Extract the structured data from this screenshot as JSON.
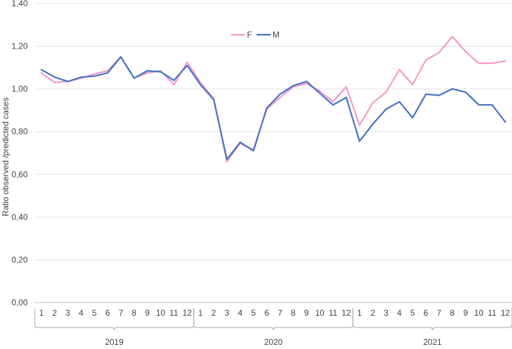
{
  "chart_data": {
    "type": "line",
    "title": "",
    "xlabel": "",
    "ylabel": "Ratio observed /predicted cases",
    "ylim": [
      0,
      1.4
    ],
    "yticks": [
      "0,00",
      "0,20",
      "0,40",
      "0,60",
      "0,80",
      "1,00",
      "1,20",
      "1,40"
    ],
    "grid": true,
    "legend_position": "top-center",
    "month_labels": [
      "1",
      "2",
      "3",
      "4",
      "5",
      "6",
      "7",
      "8",
      "9",
      "10",
      "11",
      "12"
    ],
    "years": [
      "2019",
      "2020",
      "2021"
    ],
    "series": [
      {
        "name": "F",
        "color": "#f49ac8",
        "values": [
          1.075,
          1.03,
          1.035,
          1.05,
          1.07,
          1.085,
          1.15,
          1.05,
          1.075,
          1.085,
          1.02,
          1.125,
          1.03,
          0.955,
          0.66,
          0.745,
          0.715,
          0.905,
          0.96,
          1.01,
          1.025,
          0.99,
          0.94,
          1.01,
          0.83,
          0.935,
          0.985,
          1.09,
          1.02,
          1.135,
          1.17,
          1.245,
          1.175,
          1.12,
          1.12,
          1.13
        ]
      },
      {
        "name": "M",
        "color": "#4472c4",
        "values": [
          1.09,
          1.055,
          1.035,
          1.055,
          1.06,
          1.075,
          1.15,
          1.05,
          1.085,
          1.08,
          1.04,
          1.11,
          1.02,
          0.95,
          0.67,
          0.75,
          0.71,
          0.91,
          0.975,
          1.015,
          1.035,
          0.98,
          0.925,
          0.96,
          0.755,
          0.835,
          0.905,
          0.94,
          0.865,
          0.975,
          0.97,
          1.0,
          0.985,
          0.925,
          0.925,
          0.845
        ]
      }
    ]
  }
}
